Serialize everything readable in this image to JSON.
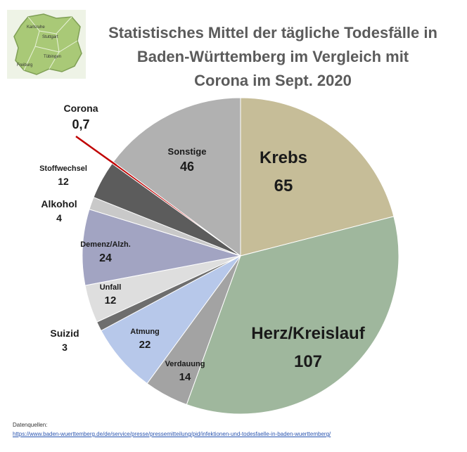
{
  "title_lines": [
    "Statistisches Mittel der tägliche Todesfälle in",
    "Baden-Württemberg im Vergleich mit",
    "Corona im Sept. 2020"
  ],
  "map": {
    "cities": [
      "Karlsruhe",
      "Stuttgart",
      "Tübingen",
      "Freiburg"
    ]
  },
  "chart_data": {
    "type": "pie",
    "title": "Statistisches Mittel der tägliche Todesfälle in Baden-Württemberg im Vergleich mit Corona im Sept. 2020",
    "start_angle_deg": 0,
    "direction": "clockwise",
    "slices": [
      {
        "label": "Krebs",
        "value": 65,
        "color": "#c6bd98"
      },
      {
        "label": "Herz/Kreislauf",
        "value": 107,
        "color": "#9fb79d"
      },
      {
        "label": "Verdauung",
        "value": 14,
        "color": "#a3a3a3"
      },
      {
        "label": "Atmung",
        "value": 22,
        "color": "#b7c8ea"
      },
      {
        "label": "Suizid",
        "value": 3,
        "color": "#6e6e6e"
      },
      {
        "label": "Unfall",
        "value": 12,
        "color": "#dedede"
      },
      {
        "label": "Demenz/Alzh.",
        "value": 24,
        "color": "#a2a4c2"
      },
      {
        "label": "Alkohol",
        "value": 4,
        "color": "#c9c9c9"
      },
      {
        "label": "Stoffwechsel",
        "value": 12,
        "color": "#5c5c5c"
      },
      {
        "label": "Corona",
        "value": 0.7,
        "color": "#c00000"
      },
      {
        "label": "Sonstige",
        "value": 46,
        "color": "#b1b1b1"
      }
    ],
    "value_labels": [
      "65",
      "107",
      "14",
      "22",
      "3",
      "12",
      "24",
      "4",
      "12",
      "0,7",
      "46"
    ]
  },
  "sources": {
    "label": "Datenquellen:",
    "url": "https://www.baden-wuerttemberg.de/de/service/presse/pressemitteilung/pid/infektionen-und-todesfaelle-in-baden-wuerttemberg/"
  }
}
